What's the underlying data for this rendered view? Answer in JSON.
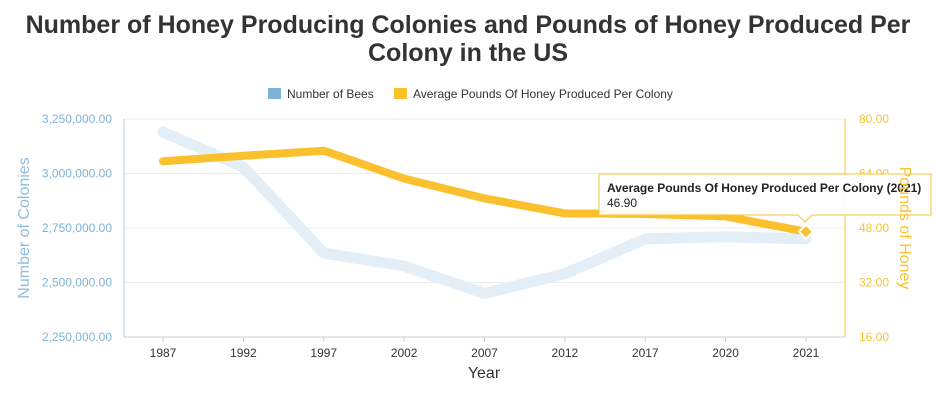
{
  "chart_data": {
    "type": "line",
    "title_lines": [
      "Number of Honey Producing Colonies and Pounds of Honey Produced Per",
      "Colony in the US"
    ],
    "categories": [
      "1987",
      "1992",
      "1997",
      "2002",
      "2007",
      "2012",
      "2017",
      "2020",
      "2021"
    ],
    "xlabel": "Year",
    "series": [
      {
        "name": "Number of Bees",
        "axis": "left",
        "color": "#e3eef7",
        "legend_color": "#7eb3d8",
        "values": [
          3190000,
          3030000,
          2635000,
          2575000,
          2450000,
          2540000,
          2700000,
          2710000,
          2700000
        ]
      },
      {
        "name": "Average Pounds Of Honey Produced Per Colony",
        "axis": "right",
        "color": "#fbc02d",
        "legend_color": "#fbc02d",
        "values": [
          67.6,
          69.2,
          70.7,
          62.5,
          56.7,
          52.3,
          52.1,
          51.4,
          46.9
        ]
      }
    ],
    "y_left": {
      "label": "Number of Colonies",
      "ylim": [
        2250000,
        3250000
      ],
      "ticks": [
        "2,250,000.00",
        "2,500,000.00",
        "2,750,000.00",
        "3,000,000.00",
        "3,250,000.00"
      ]
    },
    "y_right": {
      "label": "Pounds of Honey",
      "ylim": [
        16,
        80
      ],
      "ticks": [
        "16.00",
        "32.00",
        "48.00",
        "64.00",
        "80.00"
      ]
    },
    "grid": true,
    "legend_position": "top-center",
    "tooltip": {
      "title": "Average Pounds Of Honey Produced Per Colony (2021)",
      "value": "46.90"
    }
  }
}
